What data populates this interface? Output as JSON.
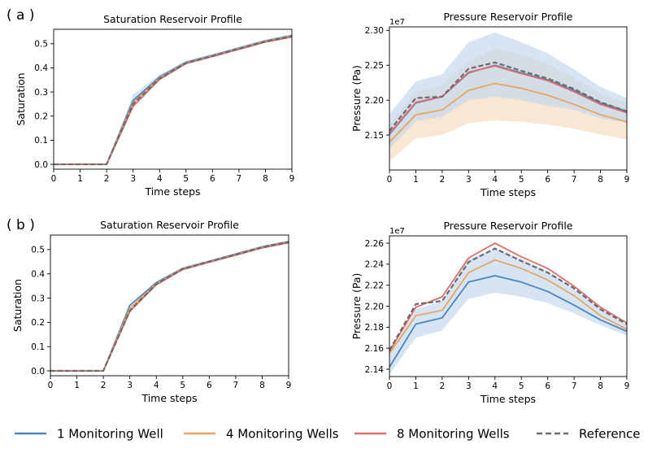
{
  "panel_labels": [
    "( a )",
    "( b )"
  ],
  "legend": [
    {
      "label": "1 Monitoring Well",
      "color": "#4a86c0",
      "style": "solid"
    },
    {
      "label": "4 Monitoring Wells",
      "color": "#e6a660",
      "style": "solid"
    },
    {
      "label": "8 Monitoring Wells",
      "color": "#e06b6b",
      "style": "solid"
    },
    {
      "label": "Reference",
      "color": "#6b6b6b",
      "style": "dashed"
    }
  ],
  "chart_data": [
    {
      "panel": "a",
      "type": "line",
      "title": "Saturation Reservoir Profile",
      "xlabel": "Time steps",
      "ylabel": "Saturation",
      "xlim": [
        0,
        9
      ],
      "ylim": [
        -0.02,
        0.56
      ],
      "xticks": [
        0,
        1,
        2,
        3,
        4,
        5,
        6,
        7,
        8,
        9
      ],
      "yticks": [
        0.0,
        0.1,
        0.2,
        0.3,
        0.4,
        0.5
      ],
      "ytick_labels": [
        "0.0",
        "0.1",
        "0.2",
        "0.3",
        "0.4",
        "0.5"
      ],
      "offset_label": "",
      "x": [
        0,
        1,
        2,
        3,
        4,
        5,
        6,
        7,
        8,
        9
      ],
      "series": [
        {
          "name": "1 Monitoring Well",
          "values": [
            0,
            0,
            0,
            0.265,
            0.362,
            0.423,
            0.452,
            0.482,
            0.512,
            0.534
          ],
          "band_lo": [
            0,
            0,
            0,
            0.245,
            0.352,
            0.417,
            0.447,
            0.477,
            0.506,
            0.528
          ],
          "band_hi": [
            0,
            0,
            0,
            0.29,
            0.372,
            0.43,
            0.457,
            0.487,
            0.517,
            0.54
          ]
        },
        {
          "name": "4 Monitoring Wells",
          "values": [
            0,
            0,
            0,
            0.255,
            0.358,
            0.42,
            0.45,
            0.48,
            0.51,
            0.532
          ]
        },
        {
          "name": "8 Monitoring Wells",
          "values": [
            0,
            0,
            0,
            0.24,
            0.352,
            0.418,
            0.447,
            0.477,
            0.507,
            0.528
          ]
        },
        {
          "name": "Reference",
          "values": [
            0,
            0,
            0,
            0.25,
            0.356,
            0.419,
            0.449,
            0.479,
            0.509,
            0.531
          ]
        }
      ]
    },
    {
      "panel": "a",
      "type": "line",
      "title": "Pressure Reservoir Profile",
      "xlabel": "Time steps",
      "ylabel": "Pressure (Pa)",
      "xlim": [
        0,
        9
      ],
      "ylim": [
        2.1,
        2.305
      ],
      "xticks": [
        0,
        1,
        2,
        3,
        4,
        5,
        6,
        7,
        8,
        9
      ],
      "yticks": [
        2.15,
        2.2,
        2.25,
        2.3
      ],
      "ytick_labels": [
        "2.15",
        "2.20",
        "2.25",
        "2.30"
      ],
      "offset_label": "1e7",
      "x": [
        0,
        1,
        2,
        3,
        4,
        5,
        6,
        7,
        8,
        9
      ],
      "series": [
        {
          "name": "4 Monitoring Wells",
          "values": [
            2.14,
            2.179,
            2.186,
            2.214,
            2.224,
            2.217,
            2.207,
            2.194,
            2.179,
            2.169
          ],
          "band_lo": [
            2.113,
            2.145,
            2.15,
            2.167,
            2.171,
            2.169,
            2.165,
            2.159,
            2.151,
            2.144
          ],
          "band_hi": [
            2.165,
            2.212,
            2.222,
            2.257,
            2.274,
            2.266,
            2.252,
            2.232,
            2.209,
            2.196
          ]
        },
        {
          "name": "1 Monitoring Well",
          "values": [
            2.151,
            2.196,
            2.205,
            2.239,
            2.25,
            2.239,
            2.229,
            2.214,
            2.196,
            2.184
          ],
          "band_lo": [
            2.131,
            2.17,
            2.176,
            2.2,
            2.205,
            2.2,
            2.192,
            2.186,
            2.174,
            2.167
          ],
          "band_hi": [
            2.18,
            2.227,
            2.237,
            2.283,
            2.297,
            2.283,
            2.267,
            2.244,
            2.219,
            2.203
          ]
        },
        {
          "name": "8 Monitoring Wells",
          "values": [
            2.152,
            2.197,
            2.205,
            2.24,
            2.249,
            2.238,
            2.228,
            2.212,
            2.194,
            2.182
          ]
        },
        {
          "name": "Reference",
          "values": [
            2.156,
            2.203,
            2.205,
            2.245,
            2.254,
            2.242,
            2.231,
            2.216,
            2.197,
            2.184
          ]
        }
      ]
    },
    {
      "panel": "b",
      "type": "line",
      "title": "Saturation Reservoir Profile",
      "xlabel": "Time steps",
      "ylabel": "Saturation",
      "xlim": [
        0,
        9
      ],
      "ylim": [
        -0.02,
        0.56
      ],
      "xticks": [
        0,
        1,
        2,
        3,
        4,
        5,
        6,
        7,
        8,
        9
      ],
      "yticks": [
        0.0,
        0.1,
        0.2,
        0.3,
        0.4,
        0.5
      ],
      "ytick_labels": [
        "0.0",
        "0.1",
        "0.2",
        "0.3",
        "0.4",
        "0.5"
      ],
      "offset_label": "",
      "x": [
        0,
        1,
        2,
        3,
        4,
        5,
        6,
        7,
        8,
        9
      ],
      "series": [
        {
          "name": "1 Monitoring Well",
          "values": [
            0,
            0,
            0,
            0.27,
            0.364,
            0.423,
            0.452,
            0.482,
            0.512,
            0.533
          ]
        },
        {
          "name": "4 Monitoring Wells",
          "values": [
            0,
            0,
            0,
            0.258,
            0.36,
            0.421,
            0.45,
            0.48,
            0.51,
            0.531
          ]
        },
        {
          "name": "8 Monitoring Wells",
          "values": [
            0,
            0,
            0,
            0.245,
            0.355,
            0.418,
            0.448,
            0.477,
            0.507,
            0.528
          ]
        },
        {
          "name": "Reference",
          "values": [
            0,
            0,
            0,
            0.248,
            0.358,
            0.42,
            0.45,
            0.479,
            0.509,
            0.531
          ]
        }
      ]
    },
    {
      "panel": "b",
      "type": "line",
      "title": "Pressure Reservoir Profile",
      "xlabel": "Time steps",
      "ylabel": "Pressure (Pa)",
      "xlim": [
        0,
        9
      ],
      "ylim": [
        2.133,
        2.267
      ],
      "xticks": [
        0,
        1,
        2,
        3,
        4,
        5,
        6,
        7,
        8,
        9
      ],
      "yticks": [
        2.14,
        2.16,
        2.18,
        2.2,
        2.22,
        2.24,
        2.26
      ],
      "ytick_labels": [
        "2.14",
        "2.16",
        "2.18",
        "2.20",
        "2.22",
        "2.24",
        "2.26"
      ],
      "offset_label": "1e7",
      "x": [
        0,
        1,
        2,
        3,
        4,
        5,
        6,
        7,
        8,
        9
      ],
      "series": [
        {
          "name": "1 Monitoring Well",
          "values": [
            2.142,
            2.183,
            2.189,
            2.223,
            2.229,
            2.223,
            2.214,
            2.201,
            2.187,
            2.176
          ],
          "band_lo": [
            2.135,
            2.17,
            2.177,
            2.207,
            2.213,
            2.209,
            2.203,
            2.193,
            2.182,
            2.172
          ],
          "band_hi": [
            2.155,
            2.197,
            2.205,
            2.245,
            2.255,
            2.245,
            2.233,
            2.216,
            2.198,
            2.182
          ]
        },
        {
          "name": "4 Monitoring Wells",
          "values": [
            2.155,
            2.191,
            2.196,
            2.232,
            2.244,
            2.236,
            2.225,
            2.21,
            2.191,
            2.178
          ]
        },
        {
          "name": "8 Monitoring Wells",
          "values": [
            2.157,
            2.199,
            2.209,
            2.246,
            2.26,
            2.247,
            2.236,
            2.219,
            2.199,
            2.184
          ]
        },
        {
          "name": "Reference",
          "values": [
            2.158,
            2.202,
            2.205,
            2.242,
            2.255,
            2.243,
            2.232,
            2.217,
            2.197,
            2.183
          ]
        }
      ]
    }
  ]
}
